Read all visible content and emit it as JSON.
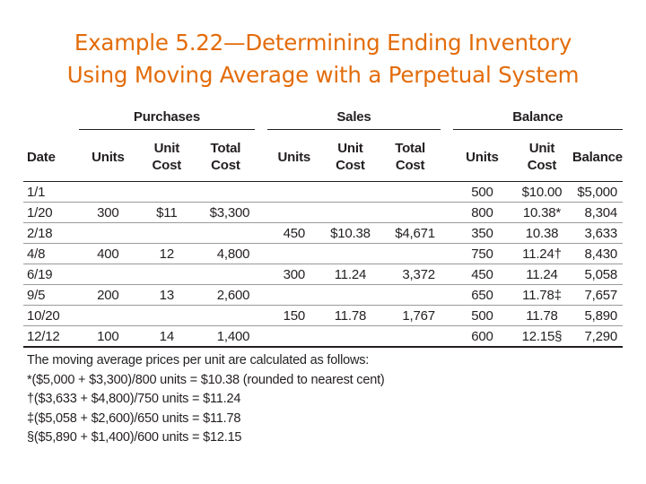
{
  "slide": {
    "title_line1": "Example 5.22—Determining Ending Inventory",
    "title_line2": "Using Moving Average with a Perpetual System"
  },
  "table": {
    "groups": {
      "purchases": "Purchases",
      "sales": "Sales",
      "balance": "Balance"
    },
    "columns": {
      "date": "Date",
      "p_units": "Units",
      "p_unit_cost": "Unit\nCost",
      "p_total_cost": "Total\nCost",
      "s_units": "Units",
      "s_unit_cost": "Unit\nCost",
      "s_total_cost": "Total\nCost",
      "b_units": "Units",
      "b_unit_cost": "Unit\nCost",
      "b_balance": "Balance"
    },
    "rows": [
      {
        "date": "1/1",
        "p_units": "",
        "p_unit_cost": "",
        "p_total_cost": "",
        "s_units": "",
        "s_unit_cost": "",
        "s_total_cost": "",
        "b_units": "500",
        "b_unit_cost": "$10.00",
        "b_balance": "$5,000"
      },
      {
        "date": "1/20",
        "p_units": "300",
        "p_unit_cost": "$11",
        "p_total_cost": "$3,300",
        "s_units": "",
        "s_unit_cost": "",
        "s_total_cost": "",
        "b_units": "800",
        "b_unit_cost": "10.38*",
        "b_balance": "8,304"
      },
      {
        "date": "2/18",
        "p_units": "",
        "p_unit_cost": "",
        "p_total_cost": "",
        "s_units": "450",
        "s_unit_cost": "$10.38",
        "s_total_cost": "$4,671",
        "b_units": "350",
        "b_unit_cost": "10.38",
        "b_balance": "3,633"
      },
      {
        "date": "4/8",
        "p_units": "400",
        "p_unit_cost": "12",
        "p_total_cost": "4,800",
        "s_units": "",
        "s_unit_cost": "",
        "s_total_cost": "",
        "b_units": "750",
        "b_unit_cost": "11.24†",
        "b_balance": "8,430"
      },
      {
        "date": "6/19",
        "p_units": "",
        "p_unit_cost": "",
        "p_total_cost": "",
        "s_units": "300",
        "s_unit_cost": "11.24",
        "s_total_cost": "3,372",
        "b_units": "450",
        "b_unit_cost": "11.24",
        "b_balance": "5,058"
      },
      {
        "date": "9/5",
        "p_units": "200",
        "p_unit_cost": "13",
        "p_total_cost": "2,600",
        "s_units": "",
        "s_unit_cost": "",
        "s_total_cost": "",
        "b_units": "650",
        "b_unit_cost": "11.78‡",
        "b_balance": "7,657"
      },
      {
        "date": "10/20",
        "p_units": "",
        "p_unit_cost": "",
        "p_total_cost": "",
        "s_units": "150",
        "s_unit_cost": "11.78",
        "s_total_cost": "1,767",
        "b_units": "500",
        "b_unit_cost": "11.78",
        "b_balance": "5,890"
      },
      {
        "date": "12/12",
        "p_units": "100",
        "p_unit_cost": "14",
        "p_total_cost": "1,400",
        "s_units": "",
        "s_unit_cost": "",
        "s_total_cost": "",
        "b_units": "600",
        "b_unit_cost": "12.15§",
        "b_balance": "7,290"
      }
    ]
  },
  "notes": {
    "intro": "The moving average prices per unit are calculated as follows:",
    "lines": [
      "*($5,000 + $3,300)/800 units = $10.38 (rounded to nearest cent)",
      "†($3,633 + $4,800)/750 units = $11.24",
      "‡($5,058 + $2,600)/650 units = $11.78",
      "§($5,890 + $1,400)/600 units = $12.15"
    ]
  }
}
